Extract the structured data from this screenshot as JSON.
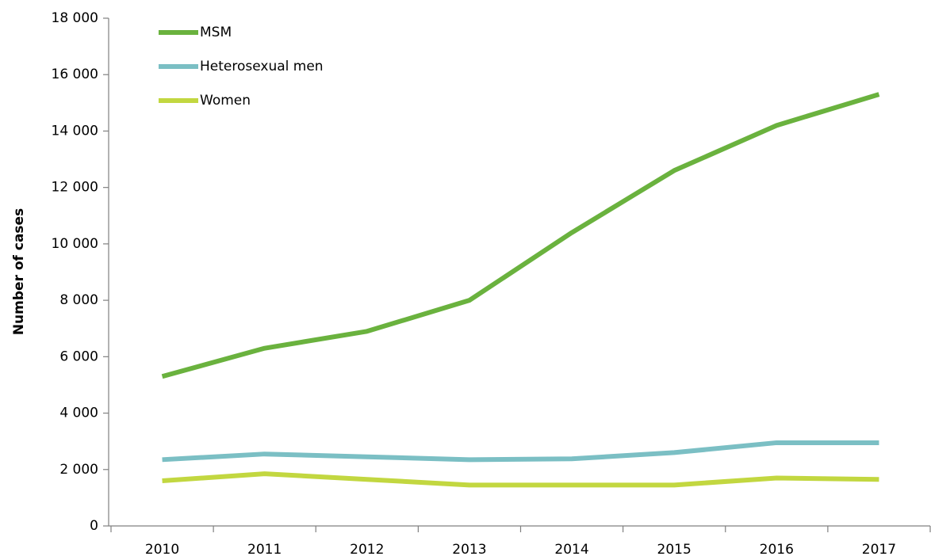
{
  "chart_data": {
    "type": "line",
    "y_label": "Number of cases",
    "categories": [
      "2010",
      "2011",
      "2012",
      "2013",
      "2014",
      "2015",
      "2016",
      "2017"
    ],
    "series": [
      {
        "name": "MSM",
        "color": "#6ab23e",
        "values": [
          5300,
          6300,
          6900,
          8000,
          10400,
          12600,
          14200,
          15300
        ]
      },
      {
        "name": "Heterosexual men",
        "color": "#7bbfc4",
        "values": [
          2350,
          2550,
          2450,
          2350,
          2380,
          2600,
          2950,
          2950
        ]
      },
      {
        "name": "Women",
        "color": "#c2d740",
        "values": [
          1600,
          1850,
          1650,
          1450,
          1450,
          1450,
          1700,
          1650
        ]
      }
    ],
    "ylim": [
      0,
      18000
    ],
    "yticks": [
      0,
      {
        "value": 2000,
        "label": "2 000"
      },
      {
        "value": 4000,
        "label": "4 000"
      },
      {
        "value": 6000,
        "label": "6 000"
      },
      {
        "value": 8000,
        "label": "8 000"
      },
      {
        "value": 10000,
        "label": "10 000"
      },
      {
        "value": 12000,
        "label": "12 000"
      },
      {
        "value": 14000,
        "label": "14 000"
      },
      {
        "value": 16000,
        "label": "16 000"
      },
      {
        "value": 18000,
        "label": "18 000"
      }
    ],
    "grid": false,
    "legend": "upper left"
  }
}
